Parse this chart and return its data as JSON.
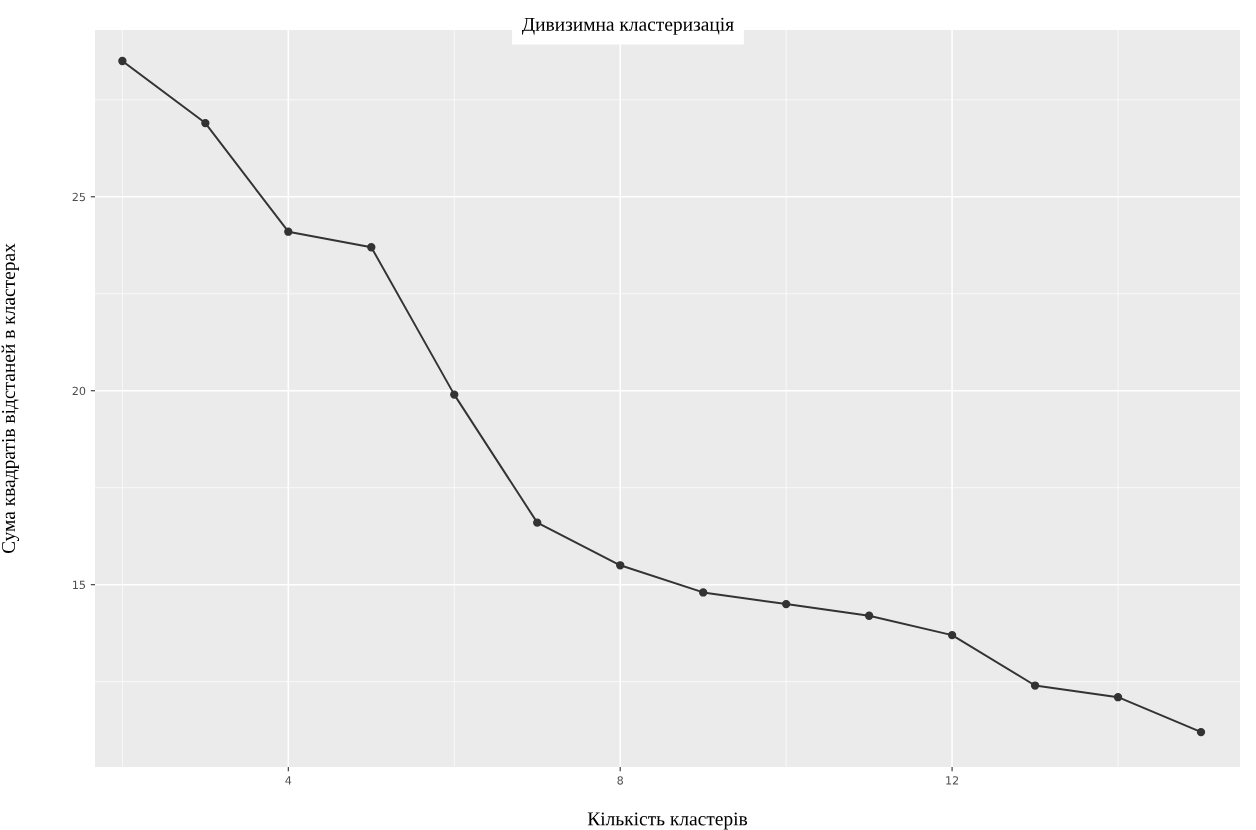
{
  "chart_data": {
    "type": "line",
    "title": "Дивизимна кластеризація",
    "xlabel": "Кількість кластерів",
    "ylabel": "Сума квадратів відстаней в кластерах",
    "x": [
      2,
      3,
      4,
      5,
      6,
      7,
      8,
      9,
      10,
      11,
      12,
      13,
      14,
      15
    ],
    "series": [
      {
        "color": "#333333",
        "values": [
          28.5,
          26.9,
          24.1,
          23.7,
          19.9,
          16.6,
          15.5,
          14.8,
          14.5,
          14.2,
          13.7,
          12.4,
          12.1,
          11.2
        ]
      }
    ],
    "xlim": [
      1.67,
      15.47
    ],
    "ylim": [
      10.3,
      29.3
    ],
    "xticks": [
      4,
      8,
      12
    ],
    "yticks": [
      15,
      20,
      25
    ],
    "grid": true,
    "marker": "circle",
    "line_style": "solid"
  }
}
